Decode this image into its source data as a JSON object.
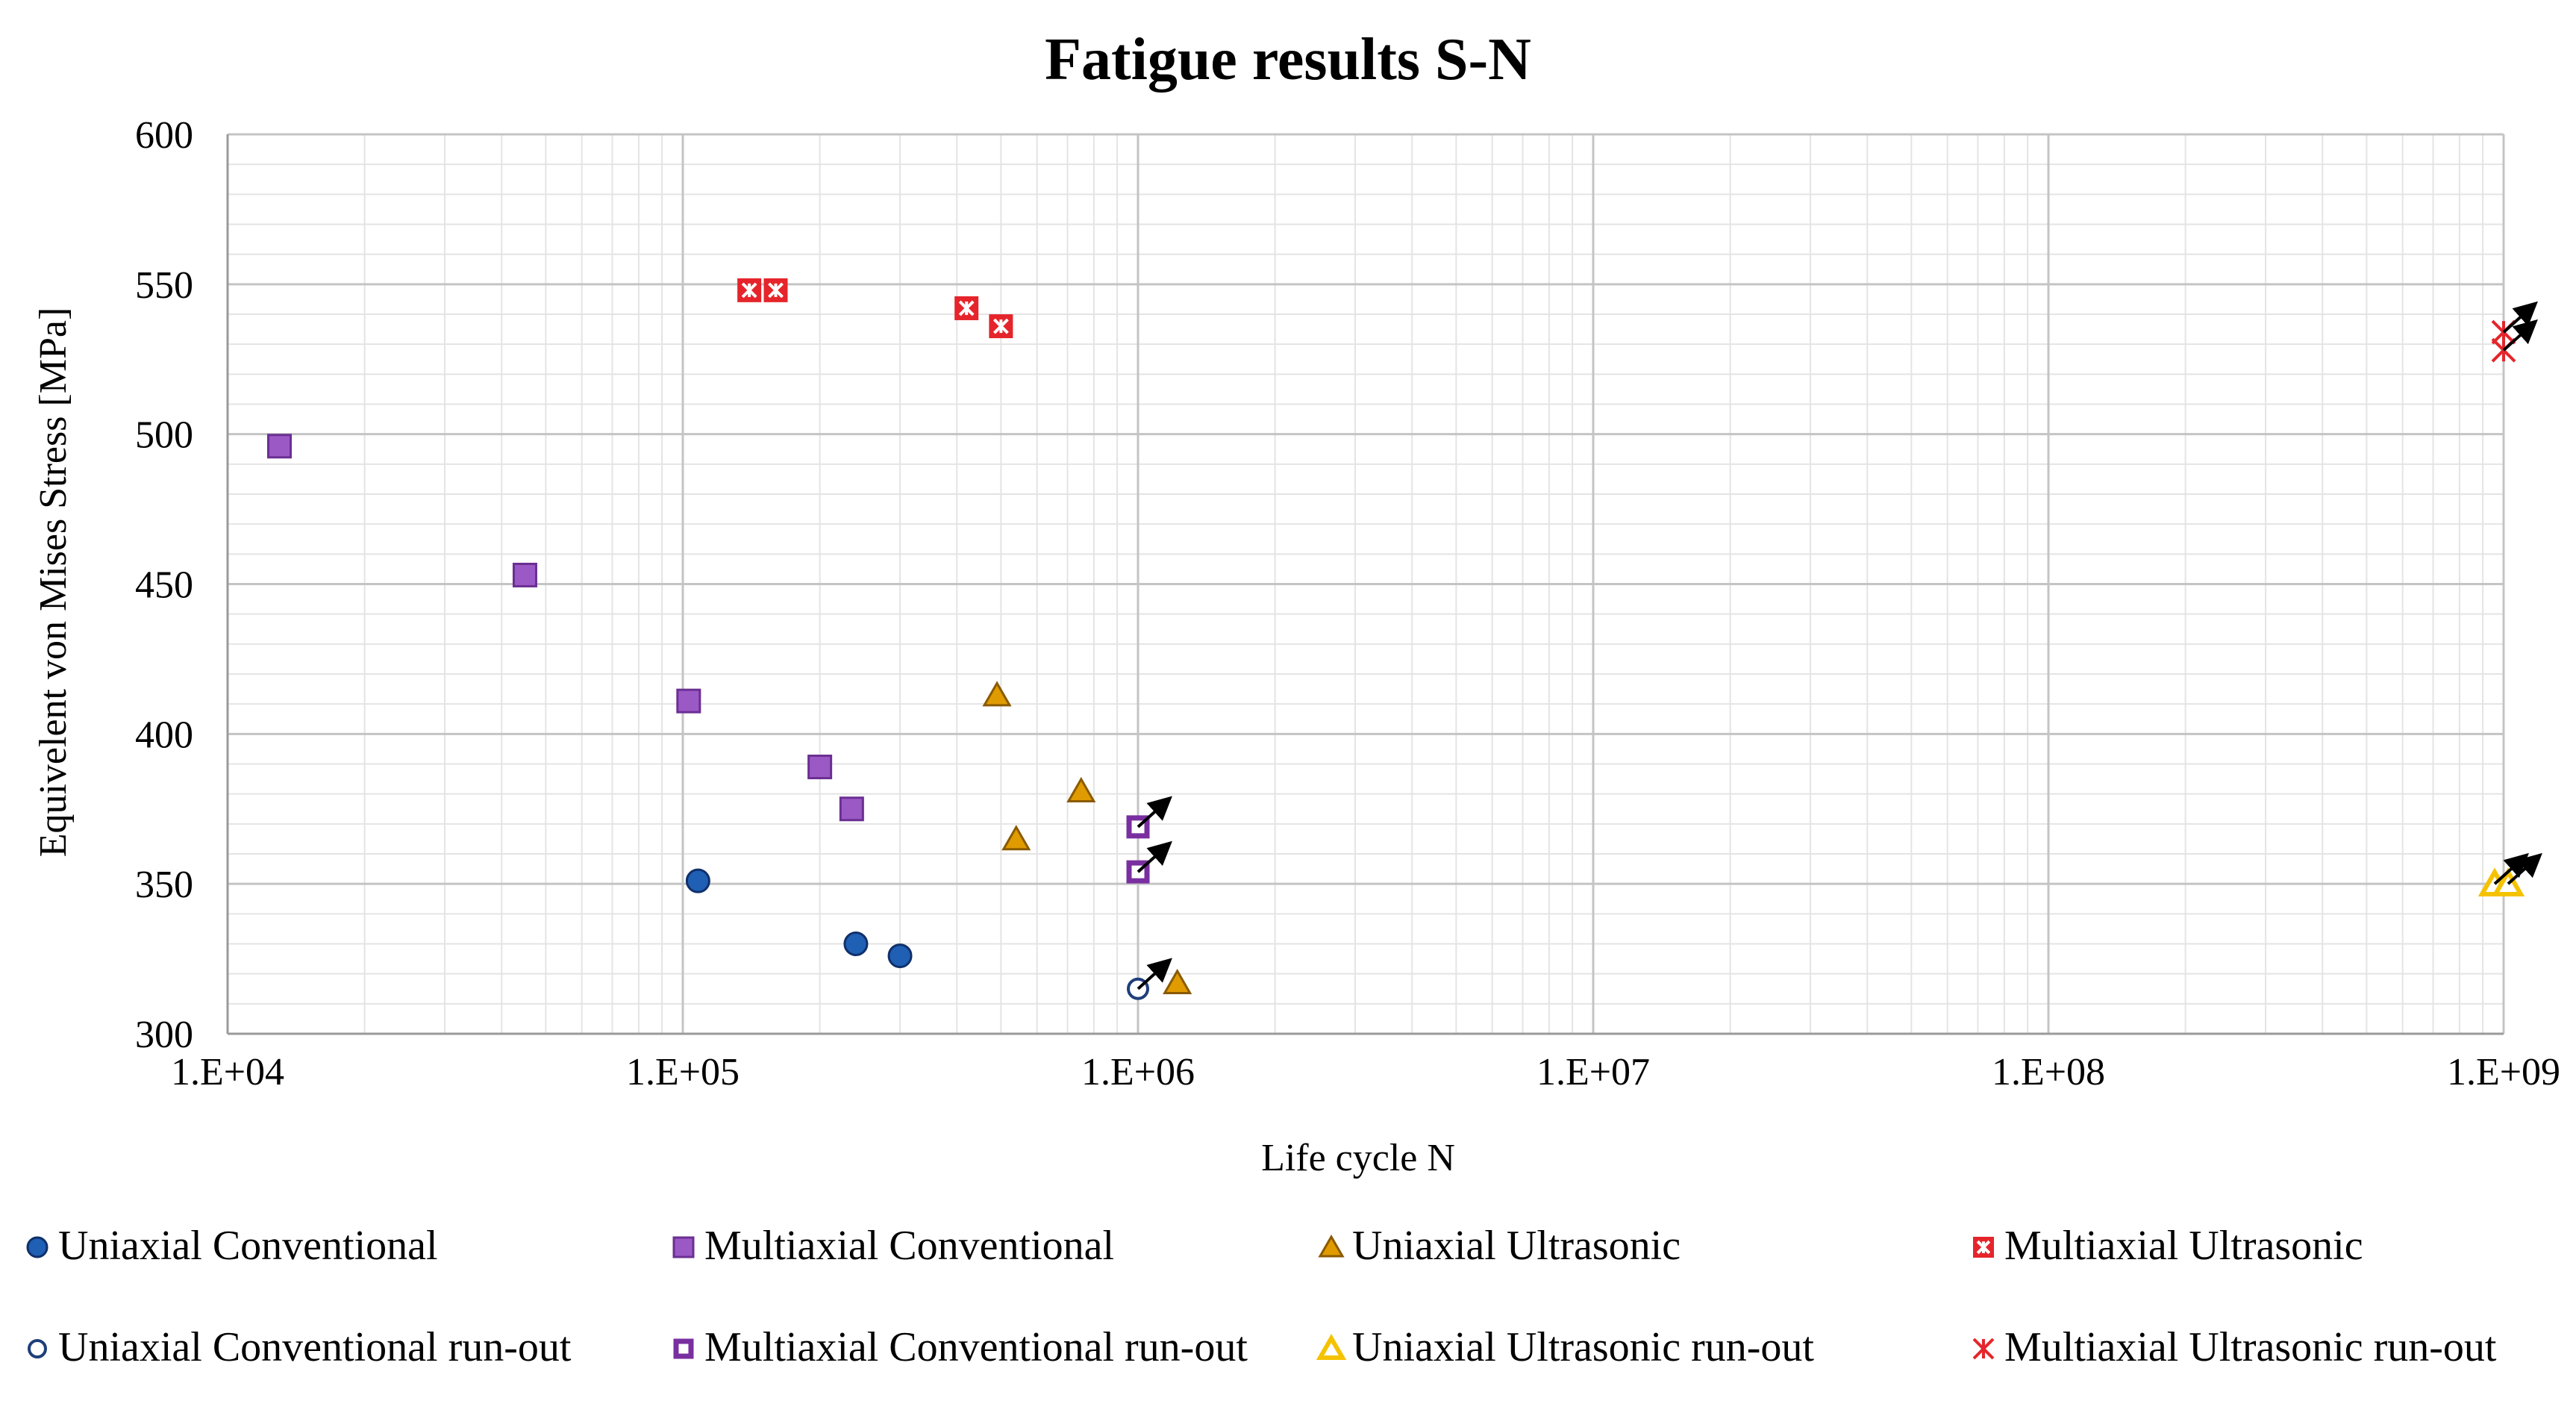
{
  "chart_data": {
    "type": "scatter",
    "title": "Fatigue results S-N",
    "xlabel": "Life cycle N",
    "ylabel": "Equivelent von Mises Stress [MPa]",
    "xscale": "log",
    "xlim": [
      10000,
      1000000000
    ],
    "ylim": [
      300,
      600
    ],
    "x_tick_values": [
      10000,
      100000,
      1000000,
      10000000,
      100000000,
      1000000000
    ],
    "x_tick_labels": [
      "1.E+04",
      "1.E+05",
      "1.E+06",
      "1.E+07",
      "1.E+08",
      "1.E+09"
    ],
    "y_ticks": [
      300,
      350,
      400,
      450,
      500,
      550,
      600
    ],
    "grid": true,
    "legend_position": "bottom",
    "series": [
      {
        "name": "Uniaxial Conventional",
        "marker": "circle",
        "color": "#1F5FB4",
        "filled": true,
        "points": [
          {
            "x": 108000,
            "y": 351
          },
          {
            "x": 240000,
            "y": 330
          },
          {
            "x": 300000,
            "y": 326
          }
        ]
      },
      {
        "name": "Multiaxial Conventional",
        "marker": "square",
        "color": "#9B59C6",
        "filled": true,
        "points": [
          {
            "x": 13000,
            "y": 496
          },
          {
            "x": 45000,
            "y": 453
          },
          {
            "x": 103000,
            "y": 411
          },
          {
            "x": 200000,
            "y": 389
          },
          {
            "x": 235000,
            "y": 375
          }
        ]
      },
      {
        "name": "Uniaxial Ultrasonic",
        "marker": "triangle",
        "color": "#E09B00",
        "filled": true,
        "points": [
          {
            "x": 490000,
            "y": 413
          },
          {
            "x": 750000,
            "y": 381
          },
          {
            "x": 540000,
            "y": 365
          },
          {
            "x": 1220000,
            "y": 317
          }
        ]
      },
      {
        "name": "Multiaxial Ultrasonic",
        "marker": "star-box",
        "color": "#E5252B",
        "filled": true,
        "points": [
          {
            "x": 140000,
            "y": 548
          },
          {
            "x": 160000,
            "y": 548
          },
          {
            "x": 420000,
            "y": 542
          },
          {
            "x": 500000,
            "y": 536
          }
        ]
      },
      {
        "name": "Uniaxial Conventional run-out",
        "marker": "circle",
        "color": "#1F3F7A",
        "filled": false,
        "runout": true,
        "points": [
          {
            "x": 1000000,
            "y": 315
          }
        ]
      },
      {
        "name": "Multiaxial Conventional run-out",
        "marker": "square",
        "color": "#7A2FA0",
        "filled": false,
        "runout": true,
        "points": [
          {
            "x": 1000000,
            "y": 369
          },
          {
            "x": 1000000,
            "y": 354
          }
        ]
      },
      {
        "name": "Uniaxial Ultrasonic run-out",
        "marker": "triangle",
        "color": "#F5C200",
        "filled": false,
        "runout": true,
        "points": [
          {
            "x": 1000000000,
            "y": 350
          },
          {
            "x": 1000000000,
            "y": 350
          }
        ]
      },
      {
        "name": "Multiaxial Ultrasonic run-out",
        "marker": "asterisk",
        "color": "#E5252B",
        "filled": false,
        "runout": true,
        "points": [
          {
            "x": 1000000000,
            "y": 534
          },
          {
            "x": 1000000000,
            "y": 528
          }
        ]
      }
    ]
  }
}
